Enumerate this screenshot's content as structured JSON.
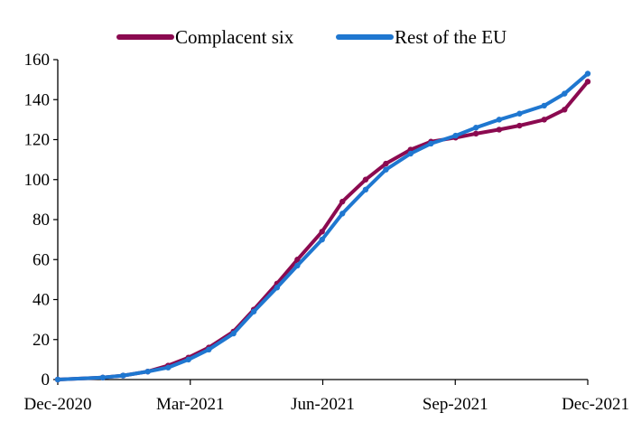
{
  "chart_data": {
    "type": "line",
    "title": "",
    "xlabel": "",
    "ylabel": "",
    "x_ticks": [
      "Dec-2020",
      "Mar-2021",
      "Jun-2021",
      "Sep-2021",
      "Dec-2021"
    ],
    "y_ticks": [
      "0",
      "20",
      "40",
      "60",
      "80",
      "100",
      "120",
      "140",
      "160"
    ],
    "ylim": [
      0,
      160
    ],
    "xlim": [
      "2020-12-01",
      "2021-12-01"
    ],
    "grid": false,
    "legend": "top",
    "x": [
      "2020-12-01",
      "2021-01-01",
      "2021-01-15",
      "2021-02-01",
      "2021-02-15",
      "2021-03-01",
      "2021-03-15",
      "2021-04-01",
      "2021-04-15",
      "2021-05-01",
      "2021-05-15",
      "2021-06-01",
      "2021-06-15",
      "2021-07-01",
      "2021-07-15",
      "2021-08-01",
      "2021-08-15",
      "2021-09-01",
      "2021-09-15",
      "2021-10-01",
      "2021-10-15",
      "2021-11-01",
      "2021-11-15",
      "2021-12-01"
    ],
    "series": [
      {
        "name": "Complacent six",
        "color": "#8B0A50",
        "values": [
          0,
          1,
          2,
          4,
          7,
          11,
          16,
          24,
          35,
          48,
          60,
          74,
          89,
          100,
          108,
          115,
          119,
          121,
          123,
          125,
          127,
          130,
          135,
          149
        ]
      },
      {
        "name": "Rest of the EU",
        "color": "#1F77D0",
        "values": [
          0,
          1,
          2,
          4,
          6,
          10,
          15,
          23,
          34,
          46,
          57,
          70,
          83,
          95,
          105,
          113,
          118,
          122,
          126,
          130,
          133,
          137,
          143,
          153
        ]
      }
    ]
  }
}
